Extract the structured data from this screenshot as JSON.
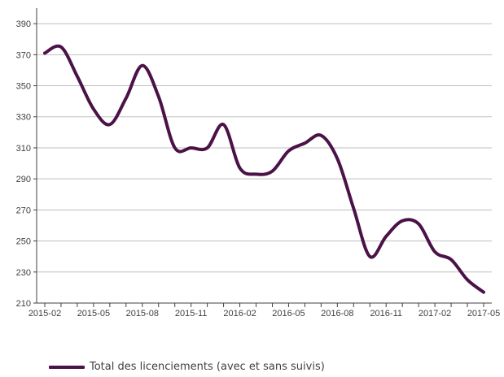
{
  "chart_data": {
    "type": "line",
    "title": "",
    "xlabel": "",
    "ylabel": "",
    "ylim": [
      210,
      400
    ],
    "y_ticks": [
      210,
      230,
      250,
      270,
      290,
      310,
      330,
      350,
      370,
      390
    ],
    "x_tick_labels": [
      "2015-02",
      "2015-05",
      "2015-08",
      "2015-11",
      "2016-02",
      "2016-05",
      "2016-08",
      "2016-11",
      "2017-02",
      "2017-05"
    ],
    "x": [
      "2015-02",
      "2015-03",
      "2015-04",
      "2015-05",
      "2015-06",
      "2015-07",
      "2015-08",
      "2015-09",
      "2015-10",
      "2015-11",
      "2015-12",
      "2016-01",
      "2016-02",
      "2016-03",
      "2016-04",
      "2016-05",
      "2016-06",
      "2016-07",
      "2016-08",
      "2016-09",
      "2016-10",
      "2016-11",
      "2016-12",
      "2017-01",
      "2017-02",
      "2017-03",
      "2017-04",
      "2017-05"
    ],
    "grid": "horizontal",
    "legend_position": "bottom-left",
    "line_color": "#4b1248",
    "series": [
      {
        "name": "Total des licenciements (avec et sans suivis)",
        "values": [
          371,
          375,
          356,
          335,
          325,
          342,
          363,
          343,
          310,
          310,
          310,
          325,
          297,
          293,
          295,
          308,
          313,
          318,
          303,
          271,
          240,
          253,
          263,
          261,
          243,
          238,
          225,
          217
        ]
      }
    ]
  }
}
